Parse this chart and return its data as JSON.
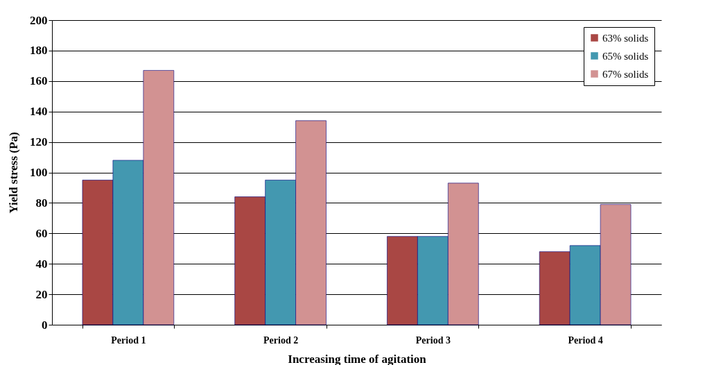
{
  "chart_data": {
    "type": "bar",
    "xlabel": "Increasing time of agitation",
    "ylabel": "Yield stress (Pa)",
    "categories": [
      "Period 1",
      "Period 2",
      "Period 3",
      "Period 4"
    ],
    "series": [
      {
        "name": "63% solids",
        "color": "#a94744",
        "values": [
          95,
          84,
          58,
          48
        ]
      },
      {
        "name": "65% solids",
        "color": "#4398b0",
        "values": [
          108,
          95,
          58,
          52
        ]
      },
      {
        "name": "67% solids",
        "color": "#d29292",
        "values": [
          167,
          134,
          93,
          79
        ]
      }
    ],
    "ylim": [
      0,
      200
    ],
    "yticks": [
      0,
      20,
      40,
      60,
      80,
      100,
      120,
      140,
      160,
      180,
      200
    ],
    "grid": "y",
    "legend": "top right"
  }
}
